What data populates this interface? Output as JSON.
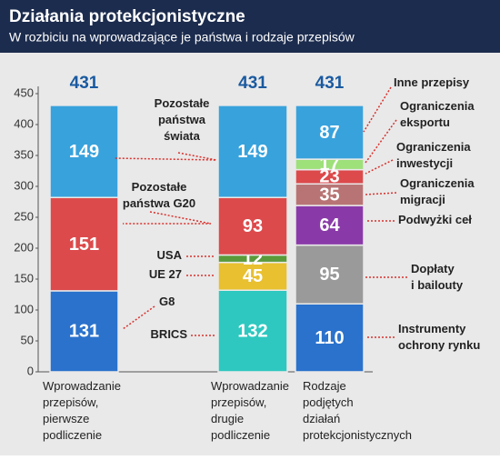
{
  "header": {
    "title": "Działania protekcjonistyczne",
    "subtitle": "W rozbiciu na wprowadzające je państwa i rodzaje przepisów"
  },
  "chart_data": {
    "type": "stacked-bar",
    "ylim": [
      0,
      450
    ],
    "yticks": [
      0,
      50,
      100,
      150,
      200,
      250,
      300,
      350,
      400,
      450
    ],
    "grid": false,
    "categories": [
      [
        "Wprowadzanie",
        "przepisów,",
        "pierwsze",
        "podliczenie"
      ],
      [
        "Wprowadzanie",
        "przepisów,",
        "drugie",
        "podliczenie"
      ],
      [
        "Rodzaje",
        "podjętych",
        "działań",
        "protekcjonistycznych"
      ]
    ],
    "totals": [
      431,
      431,
      431
    ],
    "bars": [
      {
        "segments": [
          {
            "value": 131,
            "color": "#2a72cc"
          },
          {
            "value": 151,
            "color": "#dc4a4c"
          },
          {
            "value": 149,
            "color": "#38a2dc"
          }
        ]
      },
      {
        "segments": [
          {
            "value": 132,
            "color": "#2ec8c0"
          },
          {
            "value": 45,
            "color": "#e8c030"
          },
          {
            "value": 12,
            "color": "#5a9a3a"
          },
          {
            "value": 93,
            "color": "#dc4a4c"
          },
          {
            "value": 149,
            "color": "#38a2dc"
          }
        ]
      },
      {
        "segments": [
          {
            "value": 110,
            "color": "#2a72cc"
          },
          {
            "value": 95,
            "color": "#9a9a9a"
          },
          {
            "value": 64,
            "color": "#8a3aa8"
          },
          {
            "value": 35,
            "color": "#b87474"
          },
          {
            "value": 23,
            "color": "#dc4a4c"
          },
          {
            "value": 17,
            "color": "#9ee07a"
          },
          {
            "value": 87,
            "color": "#38a2dc"
          }
        ]
      }
    ],
    "annotations": [
      [
        "Pozostałe",
        "państwa",
        "świata"
      ],
      [
        "Pozostałe",
        "państwa G20"
      ],
      [
        "USA"
      ],
      [
        "UE 27"
      ],
      [
        "G8"
      ],
      [
        "BRICS"
      ],
      [
        "Inne przepisy"
      ],
      [
        "Ograniczenia",
        "eksportu"
      ],
      [
        "Ograniczenia",
        "inwestycji"
      ],
      [
        "Ograniczenia",
        "migracji"
      ],
      [
        "Podwyżki ceł"
      ],
      [
        "Dopłaty",
        "i bailouty"
      ],
      [
        "Instrumenty",
        "ochrony rynku"
      ]
    ]
  }
}
